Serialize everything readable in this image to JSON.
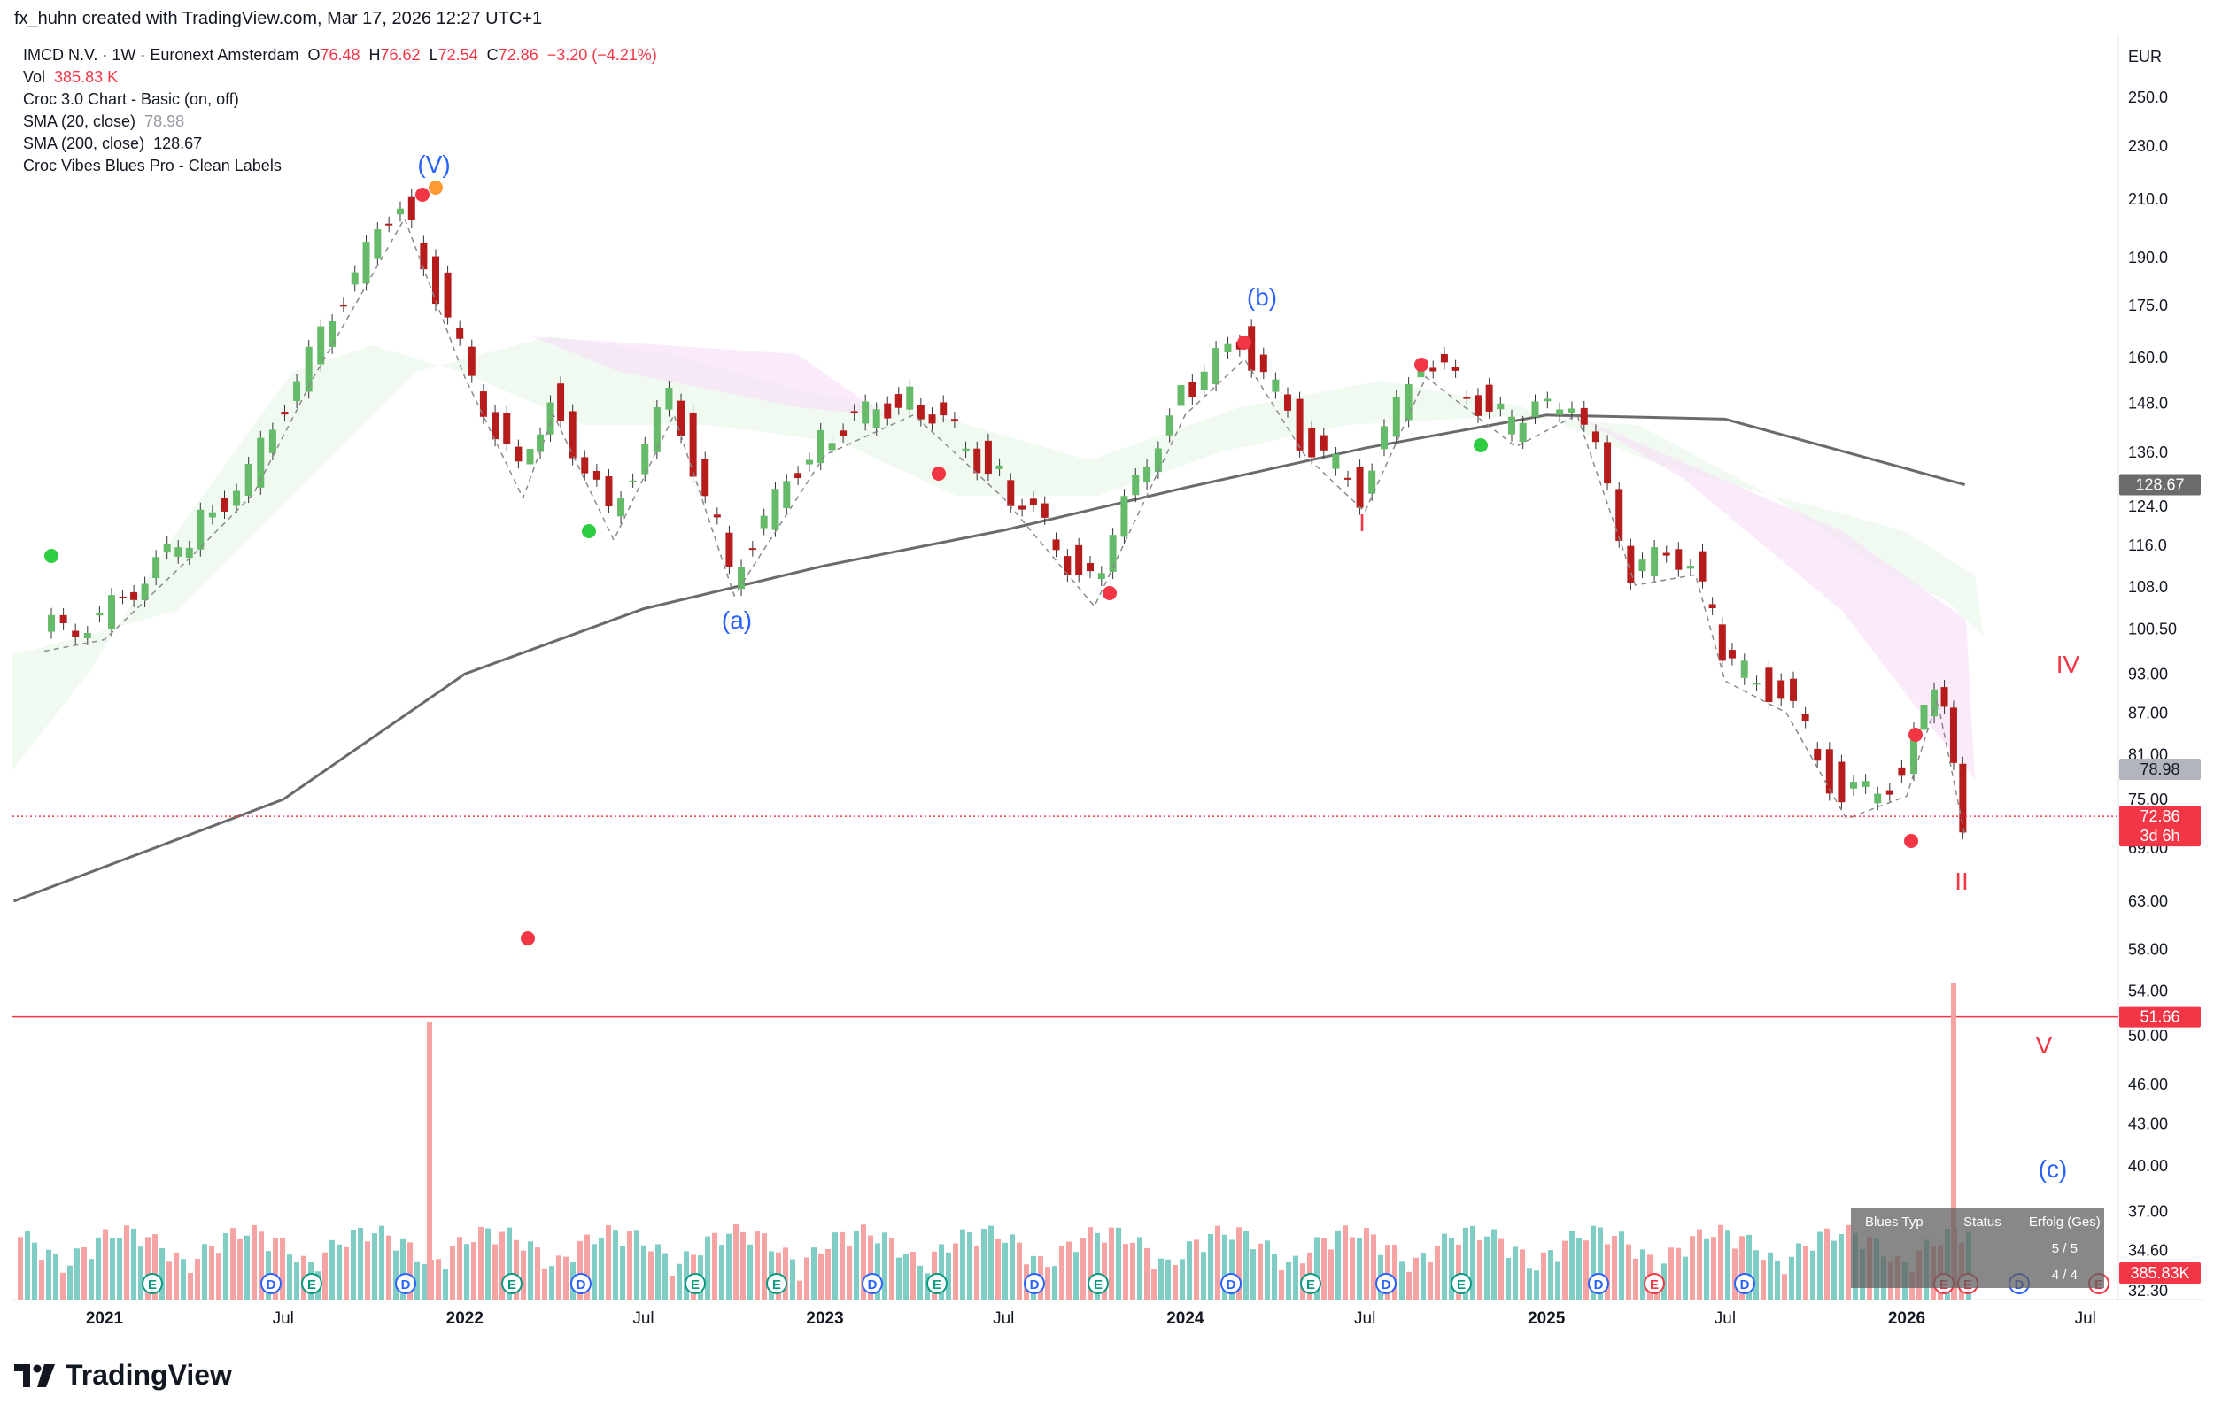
{
  "header": {
    "created_by": "fx_huhn created with TradingView.com, Mar 17, 2026 12:27 UTC+1"
  },
  "legend": {
    "symbol": "IMCD N.V. · 1W · Euronext Amsterdam",
    "o_label": "O",
    "o": "76.48",
    "h_label": "H",
    "h": "76.62",
    "l_label": "L",
    "l": "72.54",
    "c_label": "C",
    "c": "72.86",
    "change": "−3.20 (−4.21%)",
    "vol_label": "Vol",
    "vol": "385.83 K",
    "ind1": "Croc 3.0 Chart - Basic (on, off)",
    "ind2": "SMA (20, close)",
    "ind2_val": "78.98",
    "ind3": "SMA (200, close)",
    "ind3_val": "128.67",
    "ind4": "Croc Vibes Blues Pro - Clean Labels"
  },
  "currency": "EUR",
  "price_axis_ticks": [
    "250.0",
    "230.0",
    "210.0",
    "190.0",
    "175.0",
    "160.0",
    "148.0",
    "136.0",
    "124.0",
    "116.0",
    "108.0",
    "100.50",
    "93.00",
    "87.00",
    "81.00",
    "75.00",
    "69.00",
    "63.00",
    "58.00",
    "54.00",
    "50.00",
    "46.00",
    "43.00",
    "40.00",
    "37.00",
    "34.60",
    "32.30"
  ],
  "time_axis_ticks": [
    "2021",
    "Jul",
    "2022",
    "Jul",
    "2023",
    "Jul",
    "2024",
    "Jul",
    "2025",
    "Jul",
    "2026",
    "Jul"
  ],
  "price_labels": {
    "sma200": "128.67",
    "sma20": "78.98",
    "last_price": "72.86",
    "countdown": "3d 6h",
    "level": "51.66",
    "volume": "385.83K"
  },
  "wave_labels": [
    "(V)",
    "(a)",
    "(b)",
    "(c)",
    "I",
    "II",
    "IV",
    "V"
  ],
  "event_markers": [
    "E",
    "D",
    "E",
    "D",
    "E",
    "D",
    "E",
    "E",
    "D",
    "E",
    "D",
    "E",
    "D",
    "E",
    "D",
    "E",
    "D",
    "E",
    "D",
    "E",
    "E",
    "D",
    "E"
  ],
  "blues_table": {
    "headers": [
      "Blues Typ",
      "Status",
      "Erfolg (Ges)"
    ],
    "rows": [
      {
        "typ": "",
        "status": "",
        "erfolg": "5 / 5"
      },
      {
        "typ": "",
        "status": "",
        "erfolg": "4 / 4"
      }
    ]
  },
  "brand": "TradingView",
  "colors": {
    "up": "#66bb6a",
    "down": "#b71c1c",
    "sma200": "#6b6b6b",
    "wave_blue": "#2962ff",
    "wave_red": "#f23645",
    "vol_up": "#7fcdc4",
    "vol_down": "#f5a3a3"
  },
  "chart_data": {
    "type": "candlestick",
    "title": "IMCD N.V. · 1W · Euronext Amsterdam",
    "y_scale": "log",
    "ylim": [
      32.3,
      250.0
    ],
    "x_range": [
      "2020-10",
      "2026-07"
    ],
    "last": {
      "open": 76.48,
      "high": 76.62,
      "low": 72.54,
      "close": 72.86
    },
    "price_path": [
      {
        "date": "2020-11",
        "price": 100
      },
      {
        "date": "2021-01",
        "price": 102
      },
      {
        "date": "2021-04",
        "price": 118
      },
      {
        "date": "2021-06",
        "price": 131
      },
      {
        "date": "2021-08",
        "price": 160
      },
      {
        "date": "2021-11",
        "price": 210
      },
      {
        "date": "2022-01",
        "price": 160
      },
      {
        "date": "2022-03",
        "price": 130
      },
      {
        "date": "2022-04",
        "price": 150
      },
      {
        "date": "2022-06",
        "price": 121
      },
      {
        "date": "2022-08",
        "price": 150
      },
      {
        "date": "2022-10",
        "price": 110
      },
      {
        "date": "2023-01",
        "price": 140
      },
      {
        "date": "2023-04",
        "price": 150
      },
      {
        "date": "2023-07",
        "price": 130
      },
      {
        "date": "2023-10",
        "price": 108
      },
      {
        "date": "2024-01",
        "price": 150
      },
      {
        "date": "2024-03",
        "price": 165
      },
      {
        "date": "2024-05",
        "price": 140
      },
      {
        "date": "2024-07",
        "price": 127
      },
      {
        "date": "2024-09",
        "price": 160
      },
      {
        "date": "2024-12",
        "price": 142
      },
      {
        "date": "2025-02",
        "price": 150
      },
      {
        "date": "2025-04",
        "price": 112
      },
      {
        "date": "2025-06",
        "price": 114
      },
      {
        "date": "2025-07",
        "price": 95
      },
      {
        "date": "2025-09",
        "price": 90
      },
      {
        "date": "2025-11",
        "price": 75
      },
      {
        "date": "2026-01",
        "price": 78
      },
      {
        "date": "2026-02",
        "price": 92
      },
      {
        "date": "2026-03",
        "price": 72.86
      }
    ],
    "sma200_path": [
      {
        "date": "2020-10",
        "price": 63
      },
      {
        "date": "2021-07",
        "price": 75
      },
      {
        "date": "2022-01",
        "price": 93
      },
      {
        "date": "2022-07",
        "price": 104
      },
      {
        "date": "2023-01",
        "price": 112
      },
      {
        "date": "2023-07",
        "price": 119
      },
      {
        "date": "2024-01",
        "price": 128
      },
      {
        "date": "2024-07",
        "price": 137
      },
      {
        "date": "2025-01",
        "price": 145
      },
      {
        "date": "2025-07",
        "price": 144
      },
      {
        "date": "2026-03",
        "price": 128.67
      }
    ],
    "levels": [
      {
        "label": "51.66",
        "price": 51.66
      }
    ]
  }
}
